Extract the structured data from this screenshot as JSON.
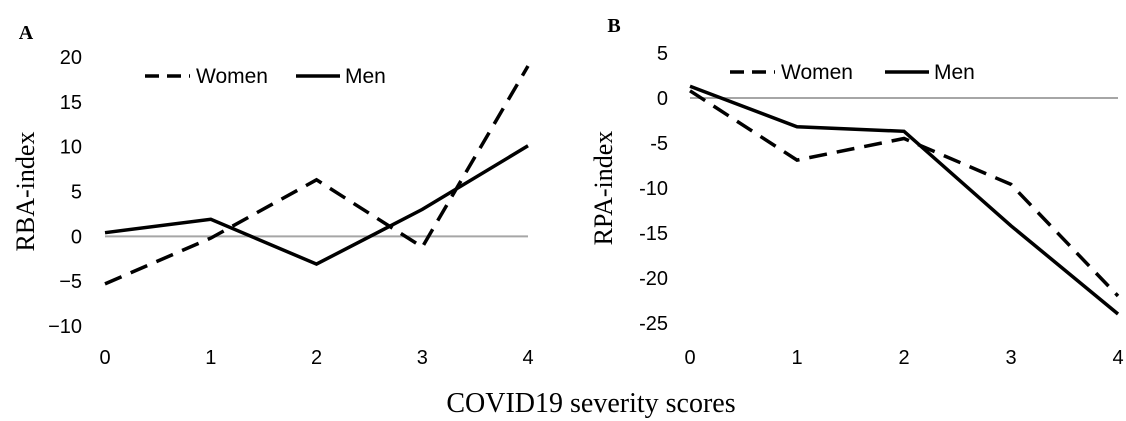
{
  "figure": {
    "x_title": "COVID19 severity scores"
  },
  "chart_data": [
    {
      "type": "line",
      "panel": "A",
      "ylabel": "RBA-index",
      "x": [
        0,
        1,
        2,
        3,
        4
      ],
      "x_ticks": [
        "0",
        "1",
        "2",
        "3",
        "4"
      ],
      "ylim": [
        -10,
        20
      ],
      "y_ticks": [
        "20",
        "15",
        "10",
        "5",
        "0",
        "−5",
        "−10"
      ],
      "y_tick_values": [
        20,
        15,
        10,
        5,
        0,
        -5,
        -10
      ],
      "legend_position": "top-left",
      "series": [
        {
          "name": "Women",
          "style": "dashed",
          "values": [
            -5.3,
            -0.2,
            6.3,
            -1.2,
            19
          ]
        },
        {
          "name": "Men",
          "style": "solid",
          "values": [
            0.4,
            1.9,
            -3.1,
            3.0,
            10.1
          ]
        }
      ]
    },
    {
      "type": "line",
      "panel": "B",
      "ylabel": "RPA-index",
      "x": [
        0,
        1,
        2,
        3,
        4
      ],
      "x_ticks": [
        "0",
        "1",
        "2",
        "3",
        "4"
      ],
      "ylim": [
        -25,
        5
      ],
      "y_ticks": [
        "5",
        "0",
        "-5",
        "-10",
        "-15",
        "-20",
        "-25"
      ],
      "y_tick_values": [
        5,
        0,
        -5,
        -10,
        -15,
        -20,
        -25
      ],
      "legend_position": "top-center",
      "series": [
        {
          "name": "Women",
          "style": "dashed",
          "values": [
            0.8,
            -6.9,
            -4.5,
            -9.6,
            -22.0
          ]
        },
        {
          "name": "Men",
          "style": "solid",
          "values": [
            1.3,
            -3.2,
            -3.7,
            -14.2,
            -24.0
          ]
        }
      ]
    }
  ],
  "colors": {
    "line": "#000000",
    "zero_line": "#a6a6a6"
  }
}
